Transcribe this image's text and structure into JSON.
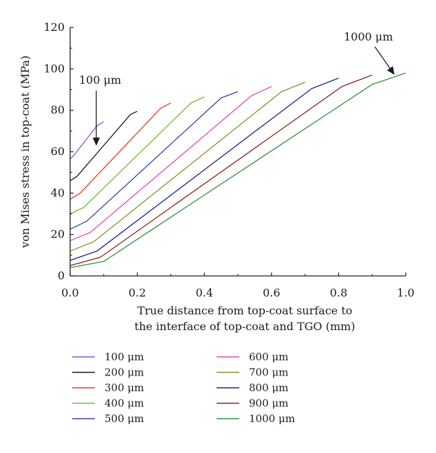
{
  "chart_data": {
    "type": "line",
    "title": "",
    "xlabel": [
      "True distance from top-coat surface to",
      "the interface of top-coat and TGO (mm)"
    ],
    "ylabel": "von Mises stress in top-coat (MPa)",
    "xlim": [
      0,
      1.0
    ],
    "ylim": [
      0,
      120
    ],
    "xticks": [
      "0.0",
      "0.2",
      "0.4",
      "0.6",
      "0.8",
      "1.0"
    ],
    "yticks": [
      "0",
      "20",
      "40",
      "60",
      "80",
      "100",
      "120"
    ],
    "grid": false,
    "legend_position": "bottom",
    "series": [
      {
        "name": "100 μm",
        "color": "#8a55c8",
        "points": [
          [
            0,
            56.5
          ],
          [
            0.01,
            58
          ],
          [
            0.08,
            72.5
          ],
          [
            0.1,
            74.5
          ]
        ]
      },
      {
        "name": "200 μm",
        "color": "#111111",
        "points": [
          [
            0,
            46
          ],
          [
            0.02,
            48
          ],
          [
            0.18,
            78
          ],
          [
            0.2,
            79.5
          ]
        ]
      },
      {
        "name": "300 μm",
        "color": "#ee3322",
        "points": [
          [
            0,
            37
          ],
          [
            0.03,
            40
          ],
          [
            0.27,
            81
          ],
          [
            0.3,
            83.5
          ]
        ]
      },
      {
        "name": "400 μm",
        "color": "#66c02a",
        "points": [
          [
            0,
            30
          ],
          [
            0.04,
            33
          ],
          [
            0.36,
            83.5
          ],
          [
            0.4,
            86.5
          ]
        ]
      },
      {
        "name": "500 μm",
        "color": "#3a3ab0",
        "points": [
          [
            0,
            22.5
          ],
          [
            0.05,
            26.5
          ],
          [
            0.45,
            86
          ],
          [
            0.5,
            89
          ]
        ]
      },
      {
        "name": "600 μm",
        "color": "#e04aa8",
        "points": [
          [
            0,
            17
          ],
          [
            0.06,
            21
          ],
          [
            0.54,
            87
          ],
          [
            0.6,
            91.5
          ]
        ]
      },
      {
        "name": "700 μm",
        "color": "#8f8a2a",
        "points": [
          [
            0,
            12
          ],
          [
            0.07,
            16.5
          ],
          [
            0.63,
            89
          ],
          [
            0.7,
            93.5
          ]
        ]
      },
      {
        "name": "800 μm",
        "color": "#221a88",
        "points": [
          [
            0,
            7.5
          ],
          [
            0.08,
            12
          ],
          [
            0.72,
            90.5
          ],
          [
            0.8,
            95.5
          ]
        ]
      },
      {
        "name": "900 μm",
        "color": "#8b1a1a",
        "points": [
          [
            0,
            5
          ],
          [
            0.09,
            9
          ],
          [
            0.81,
            91.5
          ],
          [
            0.9,
            97
          ]
        ]
      },
      {
        "name": "1000 μm",
        "color": "#2f8f3a",
        "points": [
          [
            0,
            4
          ],
          [
            0.1,
            7
          ],
          [
            0.9,
            92.5
          ],
          [
            1.0,
            98
          ]
        ]
      }
    ],
    "annotations": [
      {
        "text": "100 μm",
        "target_series": "100 μm"
      },
      {
        "text": "1000 μm",
        "target_series": "1000 μm"
      }
    ]
  }
}
